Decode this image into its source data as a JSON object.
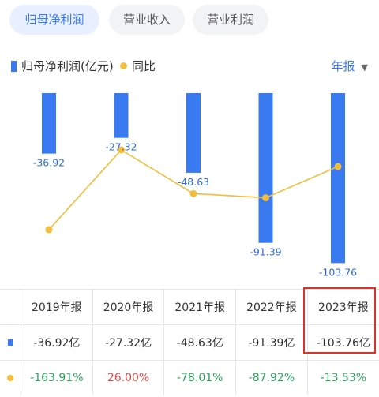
{
  "tabs": [
    {
      "label": "归母净利润",
      "active": true
    },
    {
      "label": "营业收入",
      "active": false
    },
    {
      "label": "营业利润",
      "active": false
    }
  ],
  "legend": {
    "bar_label": "归母净利润(亿元)",
    "line_label": "同比",
    "period": "年报",
    "caret": "▼"
  },
  "colors": {
    "bar": "#3a7af0",
    "line": "#f2bd3b",
    "positive": "#e04848",
    "negative": "#2aa55a",
    "highlight": "#d9342b"
  },
  "chart_data": {
    "type": "bar",
    "categories": [
      "2019年报",
      "2020年报",
      "2021年报",
      "2022年报",
      "2023年报"
    ],
    "series": [
      {
        "name": "归母净利润(亿元)",
        "type": "bar",
        "values": [
          -36.92,
          -27.32,
          -48.63,
          -91.39,
          -103.76
        ],
        "labels": [
          "-36.92",
          "-27.32",
          "-48.63",
          "-91.39",
          "-103.76"
        ]
      },
      {
        "name": "同比",
        "type": "line",
        "values": [
          -163.91,
          26.0,
          -78.01,
          -87.92,
          -13.53
        ]
      }
    ],
    "legend_position": "top-left"
  },
  "table": {
    "years": [
      "2019年报",
      "2020年报",
      "2021年报",
      "2022年报",
      "2023年报"
    ],
    "values": [
      "-36.92亿",
      "-27.32亿",
      "-48.63亿",
      "-91.39亿",
      "-103.76亿"
    ],
    "yoy": [
      "-163.91%",
      "26.00%",
      "-78.01%",
      "-87.92%",
      "-13.53%"
    ]
  }
}
